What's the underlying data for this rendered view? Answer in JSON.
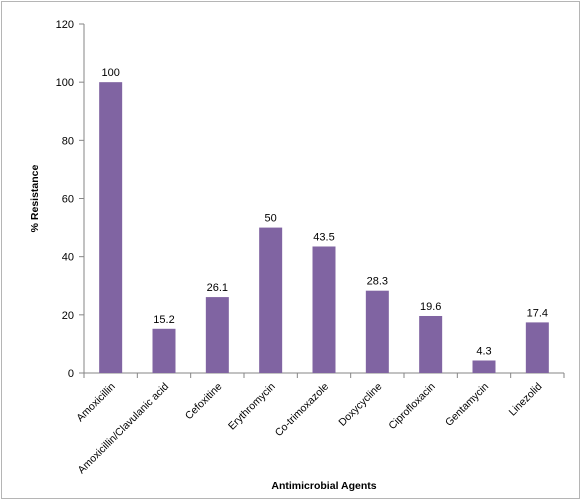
{
  "chart_data": {
    "type": "bar",
    "title": "",
    "xlabel": "Antimicrobial Agents",
    "ylabel": "% Resistance",
    "ylim": [
      0,
      120
    ],
    "yticks": [
      0,
      20,
      40,
      60,
      80,
      100,
      120
    ],
    "grid": false,
    "legend": "none",
    "bar_color": "#8064a2",
    "categories": [
      "Amoxicillin",
      "Amoxicillin/Clavulanic acid",
      "Cefoxitine",
      "Erythromycin",
      "Co-trimoxazole",
      "Doxycycline",
      "Ciprofloxacin",
      "Gentamycin",
      "Linezolid"
    ],
    "values": [
      100,
      15.2,
      26.1,
      50,
      43.5,
      28.3,
      19.6,
      4.3,
      17.4
    ],
    "data_labels": [
      "100",
      "15.2",
      "26.1",
      "50",
      "43.5",
      "28.3",
      "19.6",
      "4.3",
      "17.4"
    ]
  }
}
